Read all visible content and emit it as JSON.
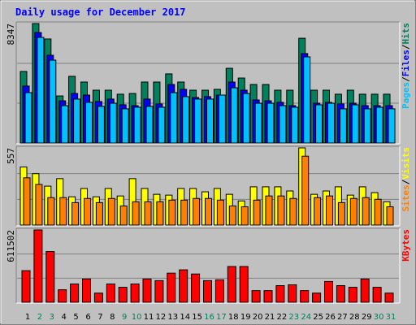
{
  "chart_data": {
    "type": "bar",
    "title": "Daily usage for December 2017",
    "title_color": "#0000ff",
    "categories": [
      "1",
      "2",
      "3",
      "4",
      "5",
      "6",
      "7",
      "8",
      "9",
      "10",
      "11",
      "12",
      "13",
      "14",
      "15",
      "16",
      "17",
      "18",
      "19",
      "20",
      "21",
      "22",
      "23",
      "24",
      "25",
      "26",
      "27",
      "28",
      "29",
      "30",
      "31"
    ],
    "label_colors": [
      "#000000",
      "#00805c",
      "#00805c",
      "#000000",
      "#000000",
      "#000000",
      "#000000",
      "#000000",
      "#00805c",
      "#00805c",
      "#000000",
      "#000000",
      "#000000",
      "#000000",
      "#000000",
      "#00805c",
      "#00805c",
      "#000000",
      "#000000",
      "#000000",
      "#000000",
      "#000000",
      "#00805c",
      "#00805c",
      "#000000",
      "#000000",
      "#000000",
      "#000000",
      "#000000",
      "#00805c",
      "#00805c"
    ],
    "legend_separator": "/",
    "panels": [
      {
        "ylim": [
          0,
          8347
        ],
        "yticks": [
          8347
        ],
        "series": [
          {
            "name": "Hits",
            "color": "#00805c",
            "values": [
              5000,
              8347,
              7270,
              3290,
              4660,
              4260,
              3690,
              3690,
              3410,
              3460,
              4260,
              4260,
              4830,
              4260,
              3690,
              3690,
              3750,
              5220,
              4540,
              4090,
              4090,
              3690,
              3690,
              7320,
              3690,
              3690,
              3410,
              3690,
              3410,
              3410,
              3410
            ]
          },
          {
            "name": "Files",
            "color": "#0000ff",
            "values": [
              3980,
              7720,
              6130,
              2950,
              3460,
              3350,
              2900,
              3070,
              2670,
              2610,
              3070,
              2730,
              4090,
              3750,
              3180,
              3240,
              3350,
              4260,
              3690,
              3010,
              2950,
              2840,
              2610,
              6250,
              2780,
              2840,
              2730,
              2780,
              2610,
              2610,
              2610
            ]
          },
          {
            "name": "Pages",
            "color": "#00c0ff",
            "values": [
              3520,
              7380,
              5790,
              2610,
              3070,
              2840,
              2560,
              2780,
              2390,
              2500,
              2560,
              2500,
              3520,
              3240,
              3070,
              3070,
              3350,
              3860,
              3460,
              2780,
              2780,
              2610,
              2500,
              6020,
              2670,
              2780,
              2390,
              2670,
              2390,
              2500,
              2390
            ]
          }
        ]
      },
      {
        "ylim": [
          0,
          557
        ],
        "yticks": [
          557
        ],
        "series": [
          {
            "name": "Visits",
            "color": "#ffff00",
            "values": [
              419,
              371,
              281,
              335,
              204,
              264,
              204,
              264,
              210,
              335,
              264,
              222,
              216,
              264,
              264,
              240,
              264,
              222,
              174,
              276,
              276,
              276,
              246,
              557,
              222,
              246,
              276,
              216,
              276,
              234,
              168
            ]
          },
          {
            "name": "Sites",
            "color": "#ff8000",
            "values": [
              341,
              293,
              198,
              198,
              162,
              192,
              162,
              192,
              138,
              168,
              168,
              168,
              180,
              180,
              192,
              192,
              180,
              138,
              132,
              180,
              210,
              210,
              192,
              497,
              198,
              210,
              162,
              192,
              198,
              186,
              132
            ]
          }
        ]
      },
      {
        "ylim": [
          0,
          611502
        ],
        "yticks": [
          611502
        ],
        "series": [
          {
            "name": "KBytes",
            "color": "#ff0000",
            "values": [
              267093,
              611502,
              428752,
              105431,
              154632,
              196806,
              77316,
              154632,
              126517,
              154632,
              196806,
              182748,
              246005,
              274122,
              238976,
              182748,
              189776,
              302237,
              302237,
              98402,
              98402,
              140575,
              147604,
              98402,
              77316,
              175719,
              140575,
              126517,
              196806,
              126517,
              77316
            ]
          }
        ]
      }
    ]
  }
}
